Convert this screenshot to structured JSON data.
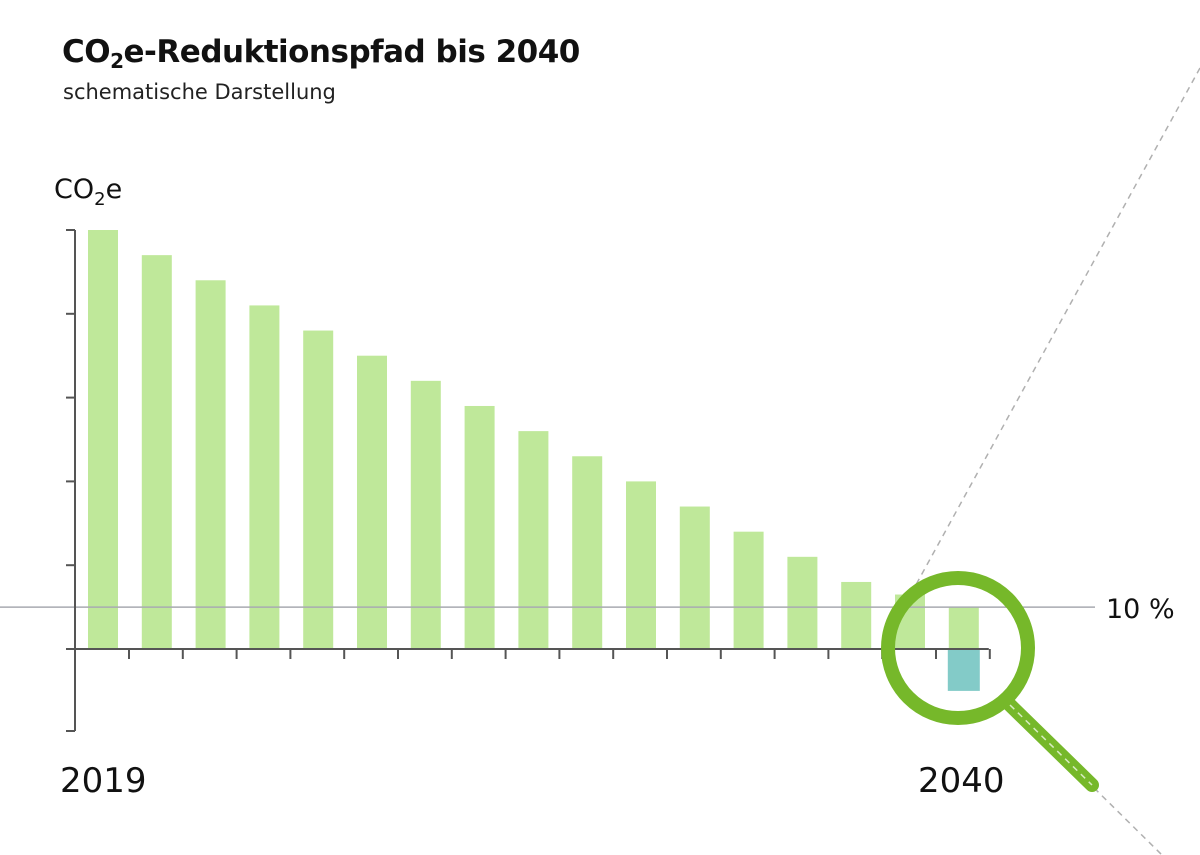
{
  "title": {
    "main": "CO",
    "sub": "2",
    "rest": "e-Reduktionspfad bis 2040"
  },
  "subtitle": "schematische Darstellung",
  "chart_data": {
    "type": "bar",
    "title": "CO2e-Reduktionspfad bis 2040",
    "subtitle": "schematische Darstellung",
    "ylabel": {
      "main": "CO",
      "sub": "2",
      "rest": "e"
    },
    "xlabel": "",
    "x_tick_labels": [
      "2019",
      "2040"
    ],
    "ylim": [
      -20,
      100
    ],
    "values": [
      100,
      94,
      88,
      82,
      76,
      70,
      64,
      58,
      52,
      46,
      40,
      34,
      28,
      22,
      16,
      13,
      10
    ],
    "negative_bar": {
      "index": 16,
      "value": -10
    },
    "reference_line": {
      "value": 10,
      "label": "10 %"
    },
    "colors": {
      "bars": "#bfe89a",
      "negative": "#83cbc8",
      "magnifier": "#76b82a",
      "axis": "#555555",
      "reference": "#a8aab0",
      "dashed": "#b0b0b0"
    },
    "grid": false,
    "icons": [
      "magnifier-icon"
    ]
  }
}
